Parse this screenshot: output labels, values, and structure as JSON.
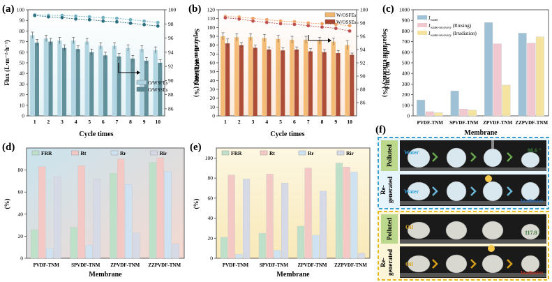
{
  "figure": {
    "background": "#ffffff"
  },
  "chart_data": [
    {
      "id": "a",
      "panel_label": "(a)",
      "type": "bar",
      "categories": [
        "1",
        "2",
        "3",
        "4",
        "5",
        "6",
        "7",
        "8",
        "9",
        "10"
      ],
      "xlabel": "Cycle times",
      "ylabel": "Flux (L·m⁻²·h⁻¹)",
      "ylabel_right": "Separation efficiency (%)",
      "ylim": [
        0,
        100
      ],
      "ylim_right": [
        85,
        100
      ],
      "yticks": [
        0,
        10,
        20,
        30,
        40,
        50,
        60,
        70,
        80,
        90,
        100
      ],
      "yticks_right": [
        86,
        88,
        90,
        92,
        94,
        96,
        98,
        100
      ],
      "series": [
        {
          "name": "O/WSFEs",
          "values": [
            76,
            73,
            71,
            71,
            70,
            66,
            66,
            64,
            63,
            62
          ],
          "color": "#aed3e0",
          "errors": [
            3,
            3,
            3,
            3,
            3,
            3,
            3,
            3,
            3,
            3
          ]
        },
        {
          "name": "O/WSSEs",
          "values": [
            69,
            70,
            64,
            63,
            60,
            57,
            56,
            54,
            52,
            50
          ],
          "color": "#5a8a96",
          "errors": [
            3,
            3,
            3,
            3,
            3,
            3,
            3,
            3,
            3,
            3
          ]
        }
      ],
      "efficiency_series": [
        {
          "values": [
            99.3,
            99.2,
            99.2,
            99.1,
            99.0,
            98.9,
            98.8,
            98.6,
            98.4,
            98.2
          ],
          "color": "#6fb0c2"
        },
        {
          "values": [
            99.2,
            99.0,
            98.9,
            98.7,
            98.6,
            98.4,
            98.3,
            98.1,
            97.9,
            97.7
          ],
          "color": "#2a6f80"
        }
      ],
      "legend_position": "center-right",
      "background": [
        "#ffffff",
        "#e3f2f6"
      ]
    },
    {
      "id": "b",
      "panel_label": "(b)",
      "type": "bar",
      "categories": [
        "1",
        "2",
        "3",
        "4",
        "5",
        "6",
        "7",
        "8",
        "9",
        "10"
      ],
      "xlabel": "Cycle times",
      "ylabel": "Flux (L·m⁻²·h⁻¹)",
      "ylabel_right": "Separation efficiency (%)",
      "ylim": [
        0,
        120
      ],
      "ylim_right": [
        84,
        100
      ],
      "yticks": [
        0,
        10,
        20,
        30,
        40,
        50,
        60,
        70,
        80,
        90,
        100,
        110,
        120
      ],
      "yticks_right": [
        86,
        88,
        90,
        92,
        94,
        96,
        98,
        100
      ],
      "series": [
        {
          "name": "W/OSFEs",
          "values": [
            90,
            89,
            89,
            88,
            87,
            86,
            86,
            85,
            84,
            80
          ],
          "color": "#f2b870",
          "errors": [
            4,
            4,
            4,
            4,
            4,
            4,
            4,
            4,
            4,
            5
          ]
        },
        {
          "name": "W/OSSEs",
          "values": [
            82,
            80,
            77,
            75,
            74,
            75,
            73,
            72,
            71,
            69
          ],
          "color": "#a8442e",
          "errors": [
            5,
            3,
            3,
            3,
            3,
            3,
            3,
            3,
            3,
            2
          ]
        }
      ],
      "efficiency_series": [
        {
          "values": [
            99.0,
            98.9,
            98.7,
            98.5,
            98.3,
            98.2,
            98.0,
            97.9,
            97.8,
            97.6
          ],
          "color": "#f0a060"
        },
        {
          "values": [
            98.8,
            98.6,
            98.3,
            98.1,
            97.9,
            97.8,
            97.6,
            97.4,
            97.2,
            96.8
          ],
          "color": "#c0504d"
        }
      ],
      "legend_position": "top-right",
      "background": [
        "#ffffff",
        "#fbe9dd"
      ]
    },
    {
      "id": "c",
      "panel_label": "(c)",
      "type": "bar",
      "categories": [
        "PVDF-TNM",
        "SPVDF-TNM",
        "ZPVDF-TNM",
        "ZZPVDF-TNM"
      ],
      "xlabel": "Membrane",
      "ylabel": "Flux (L·m⁻²·h⁻¹)",
      "ylim": [
        0,
        1000
      ],
      "yticks": [
        0,
        100,
        200,
        300,
        400,
        500,
        600,
        700,
        800,
        900,
        1000
      ],
      "series": [
        {
          "name": "J_water",
          "legend_main": "J",
          "legend_sub": "water",
          "legend_extra": "",
          "values": [
            150,
            235,
            880,
            780
          ],
          "color": "#9fc1d6"
        },
        {
          "name": "J_water-recovery (Rinsing)",
          "legend_main": "J",
          "legend_sub": "water-recovery",
          "legend_extra": " (Rinsing)",
          "values": [
            40,
            65,
            680,
            685
          ],
          "color": "#f2c8d0"
        },
        {
          "name": "J_water-recovery (Irradiation)",
          "legend_main": "J",
          "legend_sub": "water-recovery",
          "legend_extra": " (Irradiation)",
          "values": [
            30,
            55,
            290,
            745
          ],
          "color": "#f4e4a0"
        }
      ],
      "legend_position": "top-left"
    },
    {
      "id": "d",
      "panel_label": "(d)",
      "type": "bar",
      "categories": [
        "PVDF-TNM",
        "SPVDF-TNM",
        "ZPVDF-TNM",
        "ZZPVDF-TNM"
      ],
      "xlabel": "Membrane",
      "ylabel": "(%)",
      "ylim": [
        0,
        100
      ],
      "yticks": [
        0,
        20,
        40,
        60,
        80
      ],
      "series": [
        {
          "name": "FRR",
          "values": [
            26,
            28,
            77,
            87
          ],
          "color": "#bfe0c8"
        },
        {
          "name": "Rt",
          "values": [
            83,
            84,
            90,
            91
          ],
          "color": "#f4c8c4"
        },
        {
          "name": "Rr",
          "values": [
            9,
            12,
            67,
            79
          ],
          "color": "#cfe2f2"
        },
        {
          "name": "Rir",
          "values": [
            74,
            72,
            23,
            13
          ],
          "color": "#d6d9e6"
        }
      ],
      "legend_position": "top",
      "background": [
        "#c9e4ee",
        "#f5d8d0"
      ]
    },
    {
      "id": "e",
      "panel_label": "(e)",
      "type": "bar",
      "categories": [
        "PVDF-TNM",
        "SPVDF-TNM",
        "ZPVDF-TNM",
        "ZZPVDF-TNM"
      ],
      "xlabel": "Membrane",
      "ylabel": "(%)",
      "ylim": [
        0,
        110
      ],
      "yticks": [
        0,
        20,
        40,
        60,
        80,
        100
      ],
      "series": [
        {
          "name": "FRR",
          "values": [
            21,
            25,
            32,
            95
          ],
          "color": "#bfe0c8"
        },
        {
          "name": "Rt",
          "values": [
            83,
            84,
            90,
            91
          ],
          "color": "#f4c8c4"
        },
        {
          "name": "Rr",
          "values": [
            4,
            8,
            23,
            86
          ],
          "color": "#cfe2f2"
        },
        {
          "name": "Rir",
          "values": [
            79,
            75,
            67,
            5
          ],
          "color": "#d6d9e6"
        }
      ],
      "legend_position": "top",
      "background": [
        "#fdf7e2",
        "#f8e9b8"
      ]
    }
  ],
  "photo_panel": {
    "panel_label": "(f)",
    "groups": [
      {
        "border_color": "#3aa0d0",
        "background": "#e6f4fb",
        "top_label": "Polluted",
        "bottom_label_line1": "Re-",
        "bottom_label_line2": "generated",
        "liquid": "Water",
        "liquid_color": "#2aa0d8",
        "chevron_color": "#6aa84f",
        "angle_text": "98.6 °",
        "angle_color": "#3a7a3a",
        "status_text": "Inadhesive",
        "status_color": "#2a6fb8"
      },
      {
        "border_color": "#e8b820",
        "background": "#fdf5d8",
        "top_label": "Polluted",
        "bottom_label_line1": "Re-",
        "bottom_label_line2": "generated",
        "liquid": "Oil",
        "liquid_color": "#d8a018",
        "chevron_color": "#d8a018",
        "angle_text": "117.8 °",
        "angle_color": "#3a7a3a",
        "status_text": "Inadhesive",
        "status_color": "#c0301e"
      }
    ]
  }
}
